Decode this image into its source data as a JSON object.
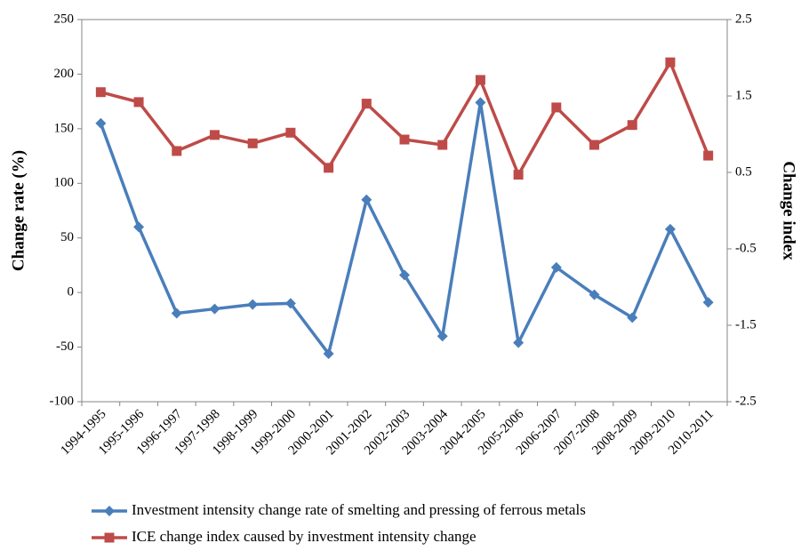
{
  "chart_data": {
    "type": "line",
    "y_label": "Change rate (%)",
    "y2_label": "Change index",
    "categories": [
      "1994-1995",
      "1995-1996",
      "1996-1997",
      "1997-1998",
      "1998-1999",
      "1999-2000",
      "2000-2001",
      "2001-2002",
      "2002-2003",
      "2003-2004",
      "2004-2005",
      "2005-2006",
      "2006-2007",
      "2007-2008",
      "2008-2009",
      "2009-2010",
      "2010-2011"
    ],
    "series": [
      {
        "name": "Investment intensity change rate of smelting and pressing of ferrous metals",
        "color": "#4a7ebb",
        "marker": "diamond",
        "axis": "y",
        "values": [
          155,
          60,
          -19,
          -15,
          -11,
          -10,
          -56,
          85,
          16,
          -40,
          174,
          -46,
          23,
          -2,
          -23,
          58,
          -9
        ]
      },
      {
        "name": "ICE change index caused by investment intensity change",
        "color": "#be4b48",
        "marker": "square",
        "axis": "y2",
        "values": [
          1.55,
          1.42,
          0.78,
          0.99,
          0.88,
          1.02,
          0.56,
          1.4,
          0.93,
          0.86,
          1.71,
          0.47,
          1.35,
          0.86,
          1.12,
          1.94,
          0.72
        ]
      }
    ],
    "ylim": [
      -100,
      250
    ],
    "yticks": [
      -100,
      -50,
      0,
      50,
      100,
      150,
      200,
      250
    ],
    "y2lim": [
      -2.5,
      2.5
    ],
    "y2ticks": [
      -2.5,
      -1.5,
      -0.5,
      0.5,
      1.5,
      2.5
    ],
    "grid": false,
    "legend": "bottom"
  }
}
